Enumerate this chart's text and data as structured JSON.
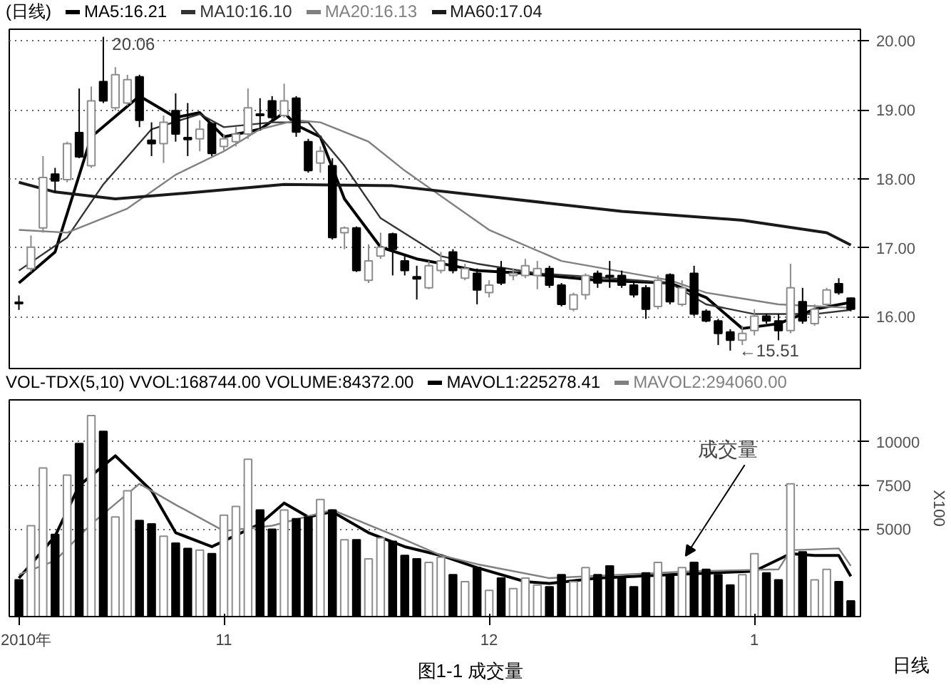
{
  "chart_data": [
    {
      "type": "candlestick",
      "title": "(日线)",
      "legend": "top",
      "grid": "y",
      "tick_labels": "y",
      "categories": [
        null,
        null,
        null,
        null,
        null,
        null,
        null,
        null,
        null,
        null,
        null,
        null,
        null,
        null,
        null,
        null,
        null,
        null,
        null,
        null,
        null,
        null,
        null,
        null,
        null,
        null,
        null,
        null,
        null,
        null,
        null,
        null,
        null,
        null,
        null,
        null,
        null,
        null,
        null,
        null,
        null,
        null,
        null,
        null,
        null,
        null,
        null,
        null,
        null,
        null,
        null,
        null,
        null,
        null,
        null,
        null,
        null,
        null,
        null,
        null,
        null,
        null,
        null,
        null,
        null,
        null,
        null,
        null,
        null,
        null
      ],
      "ylim": [
        15.25,
        20.17
      ],
      "yticks": [
        {
          "value": 16,
          "label": "16.00"
        },
        {
          "value": 17,
          "label": "17.00"
        },
        {
          "value": 18,
          "label": "18.00"
        },
        {
          "value": 19,
          "label": "19.00"
        },
        {
          "value": 20,
          "label": "20.00"
        }
      ],
      "ohlc": [
        [
          16.21,
          16.31,
          16.1,
          16.19
        ],
        [
          16.7,
          17.18,
          16.65,
          17.01
        ],
        [
          17.29,
          18.33,
          17.22,
          18.02
        ],
        [
          18.07,
          18.16,
          17.81,
          17.97
        ],
        [
          17.99,
          18.54,
          17.95,
          18.51
        ],
        [
          18.67,
          19.31,
          18.3,
          18.32
        ],
        [
          18.19,
          19.34,
          18.16,
          19.13
        ],
        [
          19.41,
          20.06,
          19.1,
          19.13
        ],
        [
          19.03,
          19.62,
          18.99,
          19.51
        ],
        [
          19.1,
          19.51,
          19.06,
          19.44
        ],
        [
          19.48,
          19.51,
          18.75,
          18.85
        ],
        [
          18.56,
          18.82,
          18.33,
          18.51
        ],
        [
          18.51,
          18.92,
          18.23,
          18.82
        ],
        [
          18.99,
          19.24,
          18.54,
          18.65
        ],
        [
          18.6,
          19.1,
          18.33,
          18.57
        ],
        [
          18.58,
          18.85,
          18.4,
          18.72
        ],
        [
          18.8,
          18.82,
          18.33,
          18.37
        ],
        [
          18.47,
          18.65,
          18.4,
          18.58
        ],
        [
          18.54,
          18.75,
          18.47,
          18.65
        ],
        [
          18.65,
          19.31,
          18.58,
          19.03
        ],
        [
          18.94,
          19.17,
          18.72,
          18.92
        ],
        [
          19.13,
          19.2,
          18.85,
          18.89
        ],
        [
          18.92,
          19.38,
          18.89,
          19.13
        ],
        [
          19.17,
          19.2,
          18.61,
          18.68
        ],
        [
          18.54,
          18.58,
          18.09,
          18.12
        ],
        [
          18.23,
          18.47,
          18.09,
          18.4
        ],
        [
          18.19,
          18.3,
          17.12,
          17.15
        ],
        [
          17.22,
          17.31,
          16.98,
          17.29
        ],
        [
          17.29,
          17.31,
          16.65,
          16.67
        ],
        [
          16.53,
          17.05,
          16.49,
          16.81
        ],
        [
          16.88,
          17.22,
          16.84,
          17.01
        ],
        [
          17.2,
          17.22,
          16.6,
          16.98
        ],
        [
          16.81,
          16.88,
          16.6,
          16.67
        ],
        [
          16.58,
          16.74,
          16.25,
          16.55
        ],
        [
          16.42,
          16.81,
          16.4,
          16.74
        ],
        [
          16.67,
          16.94,
          16.63,
          16.81
        ],
        [
          16.94,
          16.98,
          16.63,
          16.67
        ],
        [
          16.56,
          16.77,
          16.53,
          16.7
        ],
        [
          16.63,
          16.7,
          16.18,
          16.39
        ],
        [
          16.35,
          16.53,
          16.28,
          16.46
        ],
        [
          16.7,
          16.81,
          16.46,
          16.49
        ],
        [
          16.6,
          16.7,
          16.53,
          16.63
        ],
        [
          16.6,
          16.84,
          16.56,
          16.74
        ],
        [
          16.6,
          16.81,
          16.4,
          16.7
        ],
        [
          16.7,
          16.74,
          16.42,
          16.46
        ],
        [
          16.46,
          16.49,
          16.15,
          16.18
        ],
        [
          16.11,
          16.35,
          16.08,
          16.32
        ],
        [
          16.32,
          16.63,
          16.25,
          16.6
        ],
        [
          16.63,
          16.67,
          16.42,
          16.49
        ],
        [
          16.6,
          16.81,
          16.42,
          16.58
        ],
        [
          16.6,
          16.67,
          16.42,
          16.46
        ],
        [
          16.46,
          16.49,
          16.28,
          16.32
        ],
        [
          16.42,
          16.46,
          15.97,
          16.11
        ],
        [
          16.15,
          16.6,
          16.11,
          16.53
        ],
        [
          16.61,
          16.63,
          16.18,
          16.22
        ],
        [
          16.18,
          16.53,
          16.15,
          16.42
        ],
        [
          16.63,
          16.74,
          16.01,
          16.04
        ],
        [
          16.08,
          16.11,
          15.92,
          15.94
        ],
        [
          15.94,
          15.97,
          15.59,
          15.76
        ],
        [
          15.78,
          15.82,
          15.51,
          15.66
        ],
        [
          15.66,
          15.87,
          15.59,
          15.76
        ],
        [
          15.8,
          16.11,
          15.73,
          16.01
        ],
        [
          16.01,
          16.04,
          15.9,
          15.94
        ],
        [
          15.94,
          16.04,
          15.66,
          15.8
        ],
        [
          15.8,
          16.77,
          15.76,
          16.42
        ],
        [
          16.22,
          16.42,
          15.9,
          15.94
        ],
        [
          15.9,
          16.18,
          15.87,
          16.11
        ],
        [
          16.18,
          16.42,
          16.15,
          16.39
        ],
        [
          16.48,
          16.56,
          16.32,
          16.35
        ],
        [
          16.27,
          16.28,
          16.08,
          16.11
        ]
      ],
      "colors": [
        "#000000",
        "#8c8c8c",
        "#8c8c8c",
        "#000000",
        "#8c8c8c",
        "#000000",
        "#8c8c8c",
        "#000000",
        "#8c8c8c",
        "#8c8c8c",
        "#000000",
        "#000000",
        "#8c8c8c",
        "#000000",
        "#000000",
        "#8c8c8c",
        "#000000",
        "#8c8c8c",
        "#8c8c8c",
        "#8c8c8c",
        "#000000",
        "#000000",
        "#8c8c8c",
        "#000000",
        "#000000",
        "#8c8c8c",
        "#000000",
        "#8c8c8c",
        "#000000",
        "#8c8c8c",
        "#8c8c8c",
        "#000000",
        "#000000",
        "#000000",
        "#8c8c8c",
        "#8c8c8c",
        "#000000",
        "#8c8c8c",
        "#000000",
        "#8c8c8c",
        "#000000",
        "#8c8c8c",
        "#8c8c8c",
        "#8c8c8c",
        "#000000",
        "#000000",
        "#8c8c8c",
        "#8c8c8c",
        "#000000",
        "#000000",
        "#000000",
        "#000000",
        "#000000",
        "#8c8c8c",
        "#000000",
        "#8c8c8c",
        "#000000",
        "#000000",
        "#000000",
        "#000000",
        "#8c8c8c",
        "#8c8c8c",
        "#000000",
        "#000000",
        "#8c8c8c",
        "#000000",
        "#8c8c8c",
        "#8c8c8c",
        "#000000",
        "#000000"
      ],
      "series": [
        {
          "type": "line",
          "name": "MA5:16.21",
          "color": "#000000",
          "values": [
            16.49,
            null,
            null,
            16.94,
            null,
            null,
            18.61,
            null,
            null,
            null,
            19.2,
            null,
            null,
            18.89,
            null,
            18.96,
            null,
            18.61,
            null,
            null,
            18.72,
            null,
            18.96,
            18.78,
            null,
            18.61,
            null,
            17.71,
            null,
            null,
            17.01,
            null,
            null,
            16.84,
            null,
            null,
            16.74,
            null,
            16.67,
            null,
            null,
            null,
            16.63,
            null,
            null,
            null,
            null,
            null,
            16.53,
            null,
            null,
            null,
            null,
            null,
            16.49,
            null,
            null,
            16.28,
            null,
            null,
            15.83,
            null,
            null,
            15.9,
            null,
            null,
            16.11,
            null,
            null,
            16.21
          ]
        },
        {
          "type": "line",
          "name": "MA10:16.10",
          "color": "#333333",
          "values": [
            16.67,
            null,
            null,
            null,
            17.15,
            null,
            null,
            17.92,
            null,
            null,
            null,
            18.72,
            null,
            null,
            null,
            18.94,
            null,
            18.75,
            null,
            null,
            null,
            18.82,
            null,
            null,
            18.82,
            null,
            null,
            18.19,
            null,
            null,
            17.43,
            null,
            null,
            null,
            null,
            16.88,
            null,
            null,
            16.77,
            null,
            null,
            null,
            null,
            16.63,
            null,
            null,
            null,
            null,
            null,
            16.56,
            null,
            null,
            null,
            null,
            16.49,
            null,
            null,
            16.18,
            null,
            null,
            null,
            16.04,
            null,
            null,
            null,
            null,
            16.04,
            null,
            null,
            16.1
          ]
        },
        {
          "type": "line",
          "name": "MA20:16.13",
          "color": "#808080",
          "values": [
            17.26,
            null,
            null,
            null,
            17.22,
            null,
            null,
            null,
            null,
            17.57,
            null,
            null,
            null,
            18.06,
            null,
            null,
            null,
            18.4,
            null,
            null,
            18.72,
            null,
            null,
            18.85,
            null,
            18.82,
            null,
            null,
            null,
            18.54,
            null,
            null,
            18.12,
            null,
            null,
            null,
            null,
            null,
            null,
            17.26,
            null,
            null,
            null,
            null,
            null,
            16.81,
            null,
            null,
            null,
            null,
            null,
            null,
            null,
            null,
            16.53,
            null,
            null,
            16.35,
            null,
            null,
            null,
            null,
            null,
            16.18,
            null,
            null,
            null,
            null,
            null,
            16.13
          ]
        },
        {
          "type": "line",
          "name": "MA60:17.04",
          "color": "#1a1a1a",
          "values": [
            17.95,
            null,
            null,
            17.81,
            null,
            null,
            null,
            null,
            17.71,
            null,
            null,
            null,
            null,
            null,
            null,
            17.81,
            null,
            null,
            null,
            null,
            null,
            null,
            17.92,
            null,
            null,
            null,
            null,
            null,
            null,
            null,
            null,
            17.9,
            null,
            null,
            null,
            null,
            null,
            null,
            null,
            null,
            null,
            null,
            null,
            null,
            null,
            null,
            null,
            null,
            null,
            null,
            17.53,
            null,
            null,
            null,
            null,
            null,
            null,
            null,
            null,
            null,
            17.4,
            null,
            null,
            null,
            null,
            null,
            null,
            17.22,
            null,
            17.04
          ]
        }
      ],
      "annotations": [
        "20.06",
        "←15.51"
      ]
    },
    {
      "type": "bar",
      "title": "VOL-TDX(5,10) VVOL:168744.00 VOLUME:84372.00",
      "legend": "top",
      "grid": "y",
      "ylabel": "X100",
      "categories": [
        "2010年",
        null,
        null,
        null,
        null,
        null,
        null,
        null,
        null,
        null,
        null,
        null,
        null,
        null,
        null,
        null,
        null,
        "11",
        null,
        null,
        null,
        null,
        null,
        null,
        null,
        null,
        null,
        null,
        null,
        null,
        null,
        null,
        null,
        null,
        null,
        null,
        null,
        null,
        null,
        "12",
        null,
        null,
        null,
        null,
        null,
        null,
        null,
        null,
        null,
        null,
        null,
        null,
        null,
        null,
        null,
        null,
        null,
        null,
        null,
        null,
        null,
        "1",
        null,
        null,
        null,
        null,
        null,
        null,
        null,
        null
      ],
      "ylim": [
        0,
        12400
      ],
      "yticks": [
        5000,
        7500,
        10000
      ],
      "values": [
        2100,
        5200,
        8500,
        4700,
        8100,
        9900,
        11500,
        10600,
        5700,
        7200,
        5500,
        5300,
        4600,
        4200,
        3900,
        3800,
        3600,
        5800,
        6300,
        9000,
        6100,
        5000,
        6100,
        5600,
        5700,
        6700,
        6100,
        4400,
        4400,
        3300,
        4500,
        4300,
        3500,
        3300,
        3100,
        3400,
        2400,
        2000,
        2800,
        1500,
        2200,
        1600,
        2200,
        1800,
        1700,
        2400,
        2000,
        2800,
        2400,
        2900,
        2200,
        1700,
        2500,
        3100,
        2400,
        2800,
        3100,
        2700,
        2400,
        1800,
        2400,
        3600,
        2500,
        2100,
        7600,
        3700,
        2100,
        2700,
        2000,
        900
      ],
      "colors": [
        "#000000",
        "#8c8c8c",
        "#8c8c8c",
        "#000000",
        "#8c8c8c",
        "#000000",
        "#8c8c8c",
        "#000000",
        "#8c8c8c",
        "#8c8c8c",
        "#000000",
        "#000000",
        "#8c8c8c",
        "#000000",
        "#000000",
        "#8c8c8c",
        "#000000",
        "#8c8c8c",
        "#8c8c8c",
        "#8c8c8c",
        "#000000",
        "#000000",
        "#8c8c8c",
        "#000000",
        "#000000",
        "#8c8c8c",
        "#000000",
        "#8c8c8c",
        "#000000",
        "#8c8c8c",
        "#8c8c8c",
        "#000000",
        "#000000",
        "#000000",
        "#8c8c8c",
        "#8c8c8c",
        "#000000",
        "#8c8c8c",
        "#000000",
        "#8c8c8c",
        "#000000",
        "#8c8c8c",
        "#8c8c8c",
        "#8c8c8c",
        "#000000",
        "#000000",
        "#8c8c8c",
        "#8c8c8c",
        "#000000",
        "#000000",
        "#000000",
        "#000000",
        "#000000",
        "#8c8c8c",
        "#000000",
        "#8c8c8c",
        "#000000",
        "#000000",
        "#000000",
        "#000000",
        "#8c8c8c",
        "#8c8c8c",
        "#000000",
        "#000000",
        "#8c8c8c",
        "#000000",
        "#8c8c8c",
        "#8c8c8c",
        "#000000",
        "#000000"
      ],
      "series": [
        {
          "type": "line",
          "name": "MAVOL1:225278.41",
          "color": "#000000",
          "values": [
            2200,
            null,
            null,
            4600,
            null,
            7500,
            null,
            null,
            9200,
            null,
            null,
            7200,
            null,
            4800,
            null,
            null,
            4000,
            null,
            null,
            null,
            5300,
            null,
            6500,
            null,
            5700,
            null,
            6000,
            null,
            null,
            4800,
            null,
            null,
            4000,
            null,
            null,
            3500,
            null,
            null,
            2800,
            null,
            null,
            null,
            2000,
            null,
            1900,
            null,
            null,
            null,
            2200,
            null,
            null,
            null,
            null,
            null,
            2400,
            null,
            null,
            null,
            null,
            null,
            null,
            2600,
            null,
            null,
            3600,
            null,
            3500,
            null,
            3500,
            2300
          ]
        },
        {
          "type": "line",
          "name": "MAVOL2:294060.00",
          "color": "#808080",
          "values": [
            2400,
            null,
            null,
            3200,
            null,
            null,
            5300,
            null,
            null,
            null,
            7600,
            null,
            null,
            6400,
            null,
            null,
            null,
            4900,
            null,
            null,
            null,
            5200,
            null,
            null,
            null,
            null,
            6100,
            null,
            null,
            null,
            null,
            null,
            4400,
            null,
            null,
            3500,
            null,
            null,
            3000,
            null,
            null,
            null,
            null,
            null,
            2200,
            null,
            null,
            null,
            null,
            null,
            2400,
            null,
            null,
            null,
            null,
            null,
            2600,
            null,
            null,
            null,
            null,
            null,
            null,
            2700,
            3800,
            null,
            null,
            null,
            3900,
            2900
          ]
        }
      ],
      "annotations": [
        "成交量",
        "日线",
        "图1-1  成交量"
      ]
    }
  ]
}
